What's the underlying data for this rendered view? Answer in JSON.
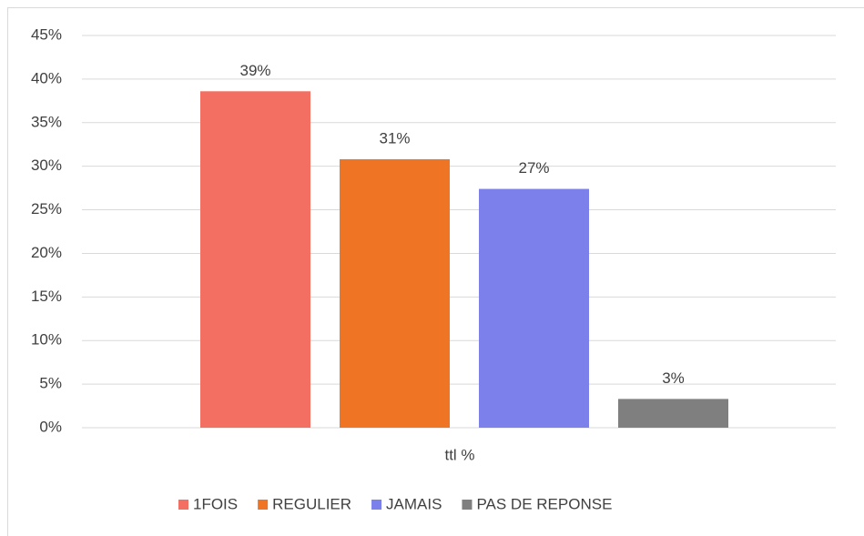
{
  "chart_data": {
    "type": "bar",
    "categories": [
      "ttl %"
    ],
    "series": [
      {
        "name": "1FOIS",
        "color": "#f26f61",
        "values": [
          38.6
        ],
        "value_labels": [
          "39%"
        ]
      },
      {
        "name": "REGULIER",
        "color": "#ef7423",
        "values": [
          30.8
        ],
        "value_labels": [
          "31%"
        ]
      },
      {
        "name": "JAMAIS",
        "color": "#7b80eb",
        "values": [
          27.4
        ],
        "value_labels": [
          "27%"
        ]
      },
      {
        "name": "PAS DE REPONSE",
        "color": "#7f7f7f",
        "values": [
          3.3
        ],
        "value_labels": [
          "3%"
        ]
      }
    ],
    "ylim": [
      0,
      45
    ],
    "yticks": [
      {
        "value": 0,
        "label": "0%"
      },
      {
        "value": 5,
        "label": "5%"
      },
      {
        "value": 10,
        "label": "10%"
      },
      {
        "value": 15,
        "label": "15%"
      },
      {
        "value": 20,
        "label": "20%"
      },
      {
        "value": 25,
        "label": "25%"
      },
      {
        "value": 30,
        "label": "30%"
      },
      {
        "value": 35,
        "label": "35%"
      },
      {
        "value": 40,
        "label": "40%"
      },
      {
        "value": 45,
        "label": "45%"
      }
    ],
    "grid": true,
    "legend": "bottom"
  }
}
